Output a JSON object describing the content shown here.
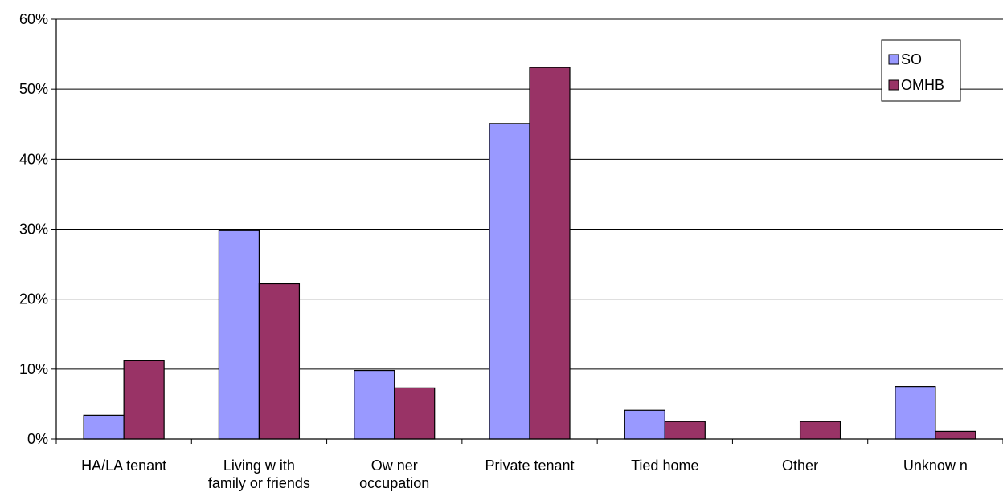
{
  "chart_data": {
    "type": "bar",
    "title": "",
    "xlabel": "",
    "ylabel": "",
    "ylim": [
      0,
      60
    ],
    "y_ticks": [
      0,
      10,
      20,
      30,
      40,
      50,
      60
    ],
    "y_tick_labels": [
      "0%",
      "10%",
      "20%",
      "30%",
      "40%",
      "50%",
      "60%"
    ],
    "grid": true,
    "legend_position": "top-right",
    "categories": [
      [
        "HA/LA tenant"
      ],
      [
        "Living w ith",
        "family or friends"
      ],
      [
        "Ow ner",
        "occupation"
      ],
      [
        "Private tenant"
      ],
      [
        "Tied home"
      ],
      [
        "Other"
      ],
      [
        "Unknow n"
      ]
    ],
    "series": [
      {
        "name": "SO",
        "color": "#9999ff",
        "values": [
          3.4,
          29.8,
          9.8,
          45.1,
          4.1,
          0,
          7.5
        ]
      },
      {
        "name": "OMHB",
        "color": "#993366",
        "values": [
          11.2,
          22.2,
          7.3,
          53.1,
          2.5,
          2.5,
          1.1
        ]
      }
    ]
  }
}
